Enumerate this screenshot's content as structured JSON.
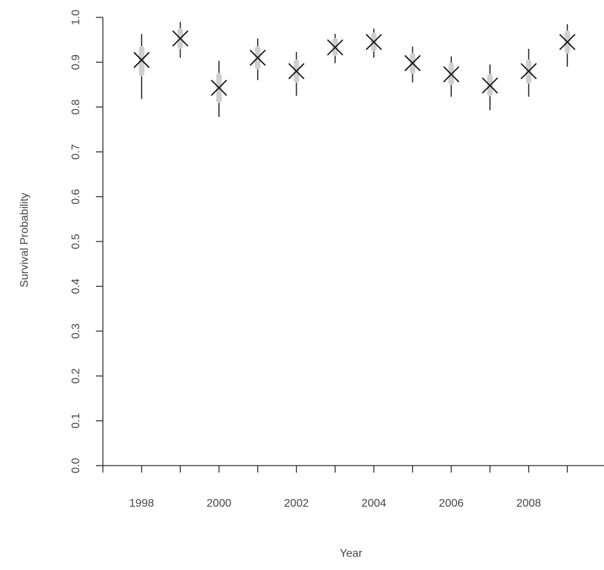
{
  "chart_data": {
    "type": "scatter",
    "title": "",
    "xlabel": "Year",
    "ylabel": "Survival Probability",
    "xlim": [
      1997,
      2010
    ],
    "ylim": [
      0.0,
      1.0
    ],
    "x_ticks": [
      1997,
      1998,
      1999,
      2000,
      2001,
      2002,
      2003,
      2004,
      2005,
      2006,
      2007,
      2008,
      2009,
      2010
    ],
    "x_tick_labels": [
      "1998",
      "2000",
      "2002",
      "2004",
      "2006",
      "2008"
    ],
    "x_tick_label_values": [
      1998,
      2000,
      2002,
      2004,
      2006,
      2008
    ],
    "y_ticks": [
      "0.0",
      "0.1",
      "0.2",
      "0.3",
      "0.4",
      "0.5",
      "0.6",
      "0.7",
      "0.8",
      "0.9",
      "1.0"
    ],
    "y_tick_values": [
      0.0,
      0.1,
      0.2,
      0.3,
      0.4,
      0.5,
      0.6,
      0.7,
      0.8,
      0.9,
      1.0
    ],
    "grid": false,
    "legend": "none",
    "series": [
      {
        "x": [
          1998,
          1999,
          2000,
          2001,
          2002,
          2003,
          2004,
          2005,
          2006,
          2007,
          2008,
          2009
        ],
        "values": [
          0.905,
          0.953,
          0.843,
          0.91,
          0.88,
          0.933,
          0.945,
          0.898,
          0.873,
          0.848,
          0.88,
          0.945
        ],
        "ci_lower": [
          0.818,
          0.91,
          0.778,
          0.86,
          0.825,
          0.898,
          0.91,
          0.855,
          0.823,
          0.793,
          0.823,
          0.89
        ],
        "ci_upper": [
          0.963,
          0.99,
          0.903,
          0.953,
          0.923,
          0.963,
          0.975,
          0.935,
          0.913,
          0.895,
          0.93,
          0.985
        ],
        "inner_lower": [
          0.875,
          0.935,
          0.815,
          0.89,
          0.86,
          0.92,
          0.93,
          0.88,
          0.855,
          0.83,
          0.858,
          0.925
        ],
        "inner_upper": [
          0.93,
          0.97,
          0.87,
          0.93,
          0.9,
          0.948,
          0.96,
          0.915,
          0.893,
          0.868,
          0.9,
          0.965
        ]
      }
    ]
  }
}
